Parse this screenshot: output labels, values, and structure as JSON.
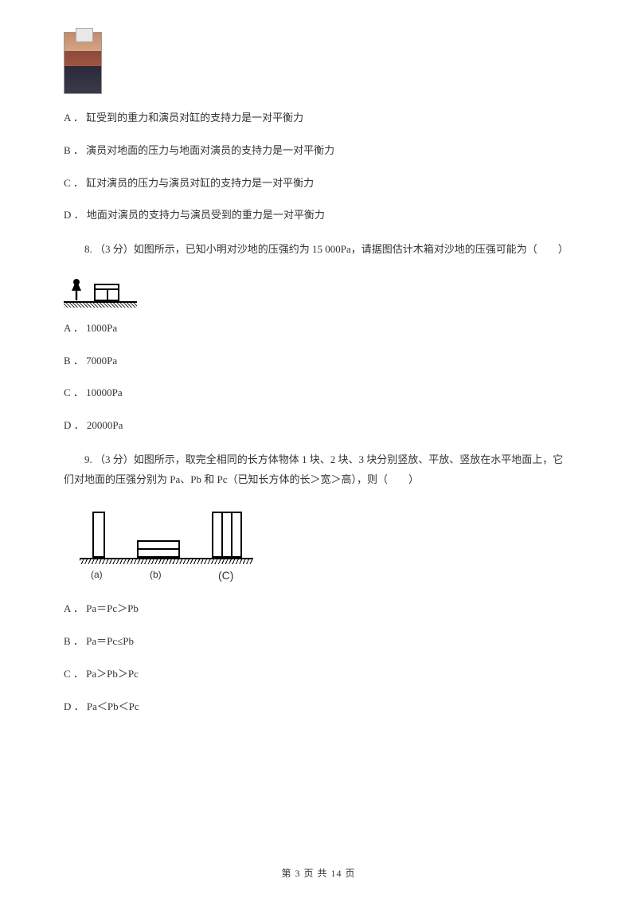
{
  "q7": {
    "optionA": "A ． 缸受到的重力和演员对缸的支持力是一对平衡力",
    "optionB": "B ． 演员对地面的压力与地面对演员的支持力是一对平衡力",
    "optionC": "C ． 缸对演员的压力与演员对缸的支持力是一对平衡力",
    "optionD": "D ． 地面对演员的支持力与演员受到的重力是一对平衡力"
  },
  "q8": {
    "stem": "8. （3 分）如图所示，已知小明对沙地的压强约为 15 000Pa，请据图估计木箱对沙地的压强可能为（　　）",
    "optionA": "A ． 1000Pa",
    "optionB": "B ． 7000Pa",
    "optionC": "C ． 10000Pa",
    "optionD": "D ． 20000Pa"
  },
  "q9": {
    "stem": "9. （3 分）如图所示，取完全相同的长方体物体 1 块、2 块、3 块分别竖放、平放、竖放在水平地面上，它们对地面的压强分别为 Pa、Pb 和 Pc（已知长方体的长＞宽＞高），则（　　）",
    "labelA": "(a)",
    "labelB": "(b)",
    "labelC": "(C)",
    "optionA": "A ． Pa＝Pc＞Pb",
    "optionB": "B ． Pa＝Pc≤Pb",
    "optionC": "C ． Pa＞Pb＞Pc",
    "optionD": "D ． Pa＜Pb＜Pc"
  },
  "footer": "第 3 页 共 14 页"
}
